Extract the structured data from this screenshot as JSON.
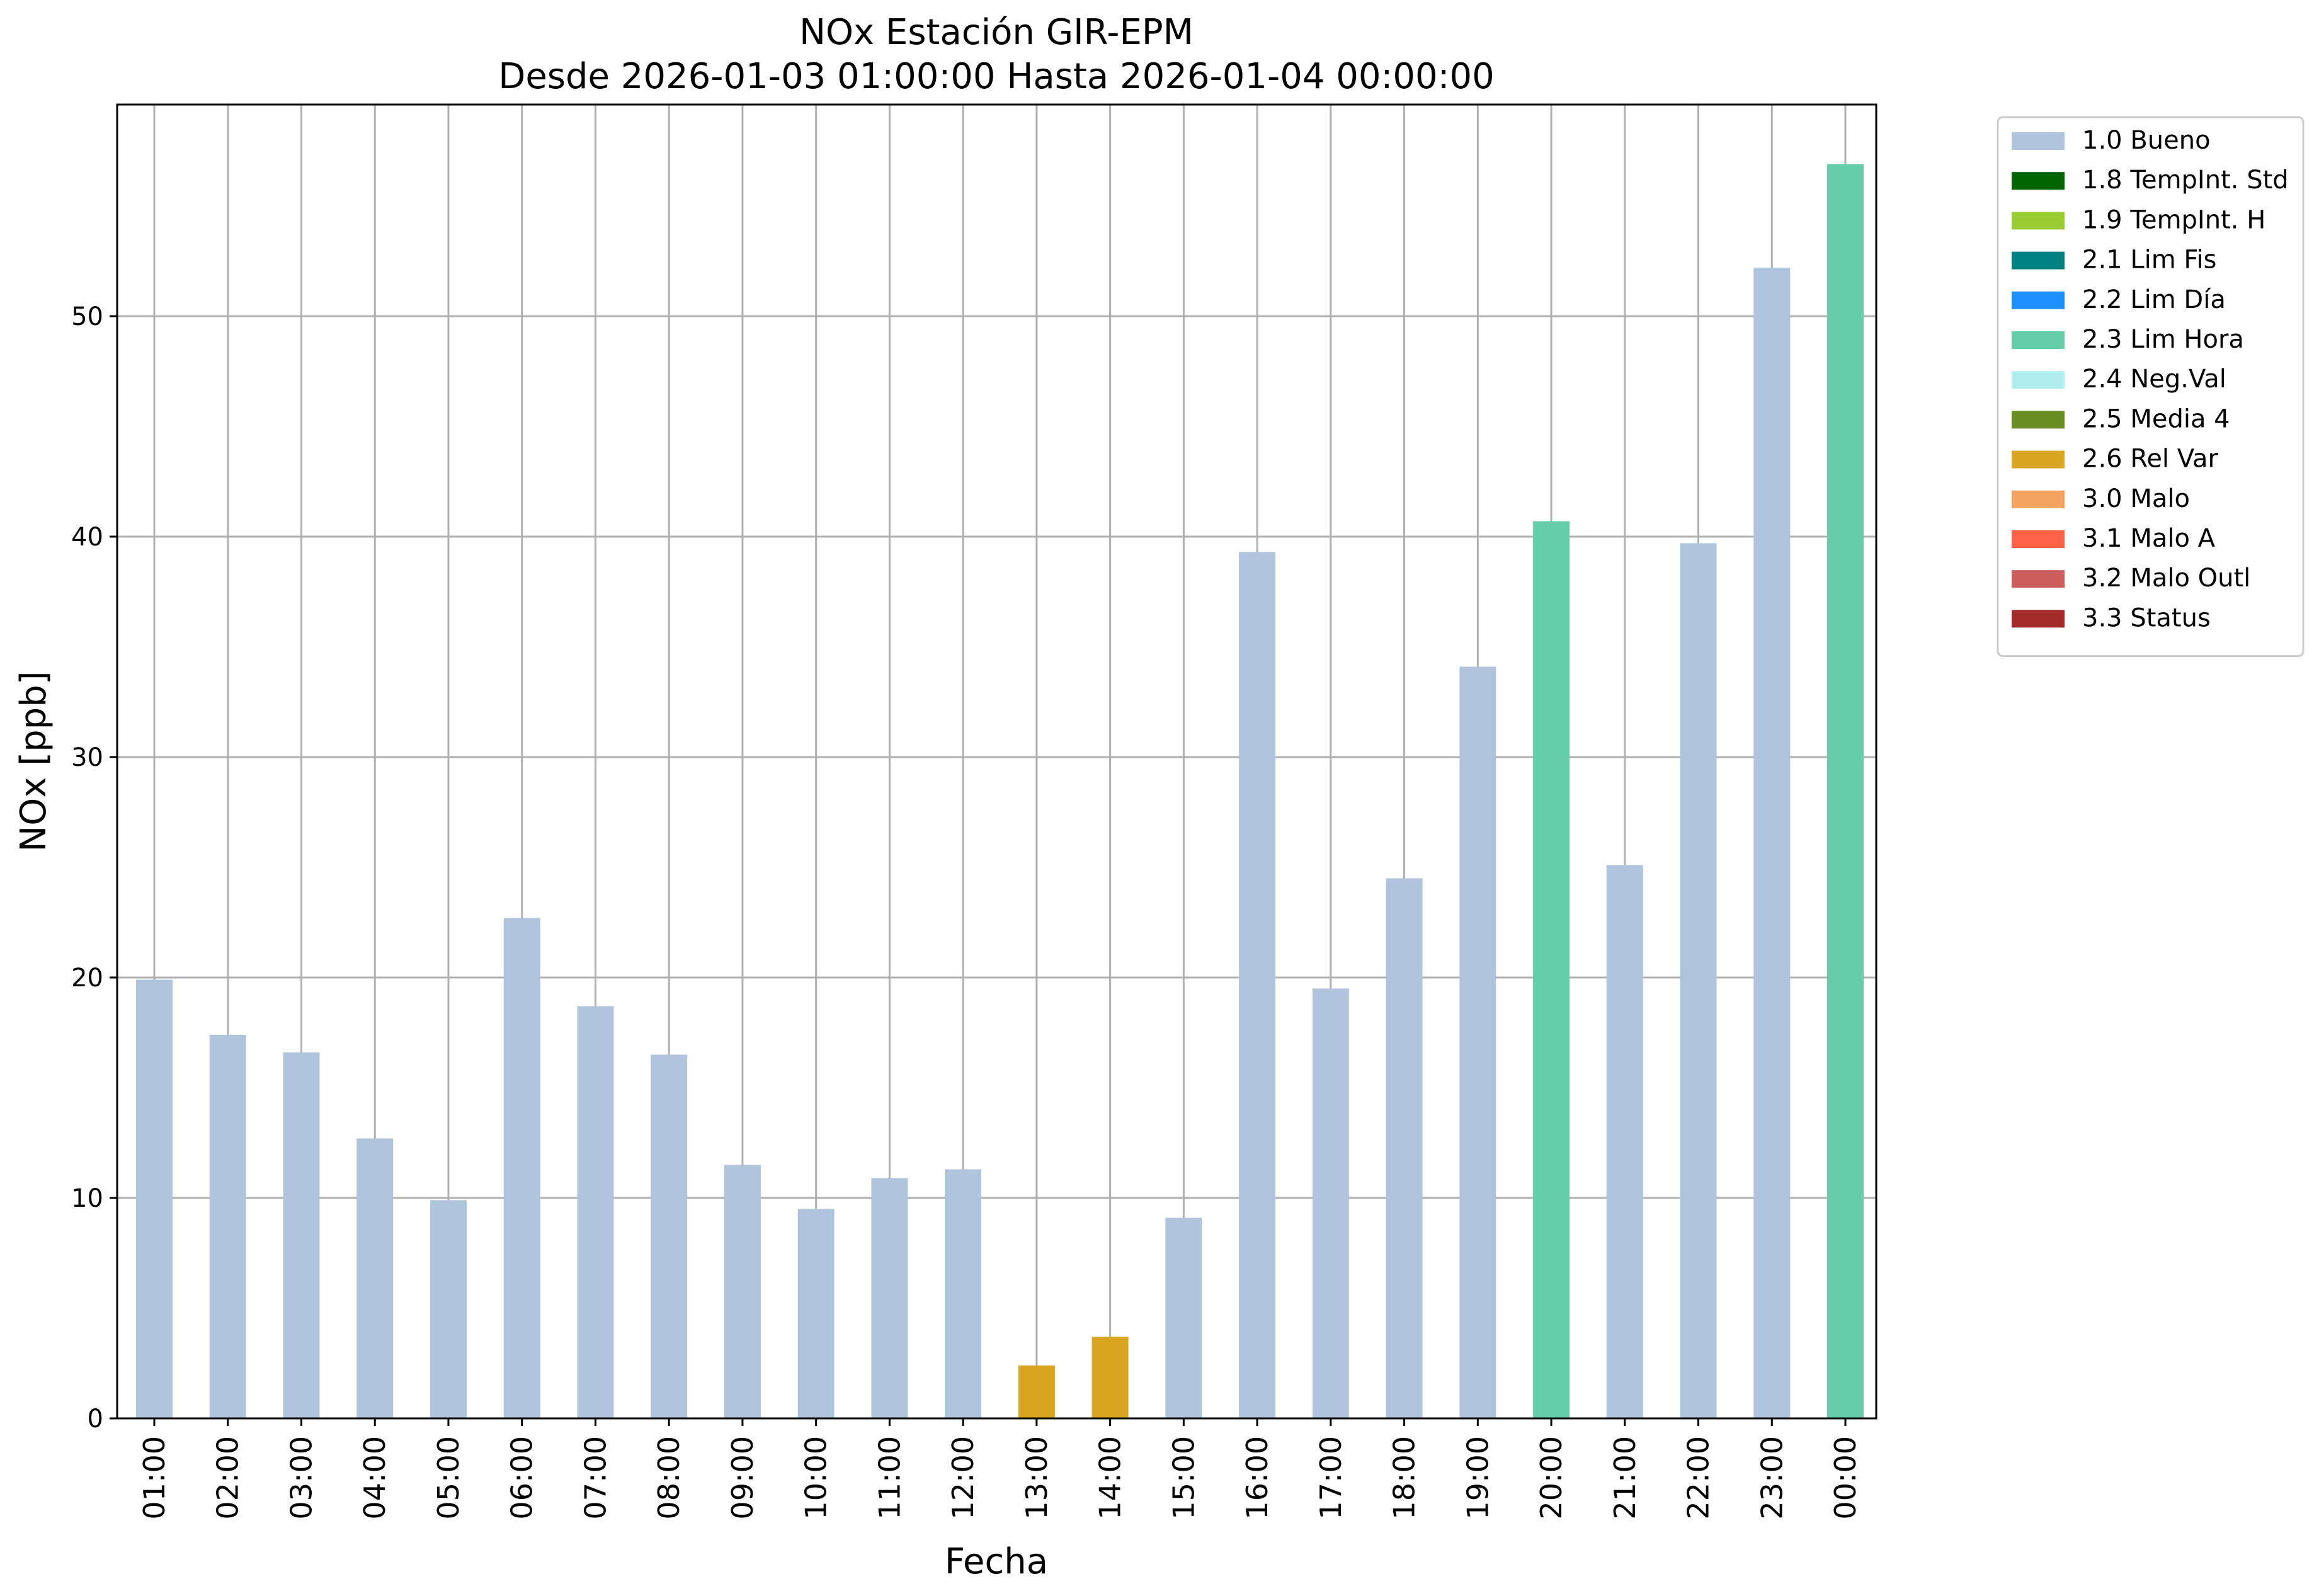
{
  "chart_data": {
    "type": "bar",
    "title": "NOx Estación GIR-EPM",
    "subtitle": "Desde 2026-01-03 01:00:00 Hasta 2026-01-04 00:00:00",
    "xlabel": "Fecha",
    "ylabel": "NOx [ppb]",
    "ylim": [
      0,
      59.6
    ],
    "yticks": [
      0,
      10,
      20,
      30,
      40,
      50
    ],
    "grid": true,
    "legend_position": "outside-top-right",
    "categories": [
      "01:00",
      "02:00",
      "03:00",
      "04:00",
      "05:00",
      "06:00",
      "07:00",
      "08:00",
      "09:00",
      "10:00",
      "11:00",
      "12:00",
      "13:00",
      "14:00",
      "15:00",
      "16:00",
      "17:00",
      "18:00",
      "19:00",
      "20:00",
      "21:00",
      "22:00",
      "23:00",
      "00:00"
    ],
    "values": [
      19.9,
      17.4,
      16.6,
      12.7,
      9.9,
      22.7,
      18.7,
      16.5,
      11.5,
      9.5,
      10.9,
      11.3,
      2.4,
      3.7,
      9.1,
      39.3,
      19.5,
      24.5,
      34.1,
      40.7,
      25.1,
      39.7,
      52.2,
      56.9
    ],
    "flags": [
      "1.0 Bueno",
      "1.0 Bueno",
      "1.0 Bueno",
      "1.0 Bueno",
      "1.0 Bueno",
      "1.0 Bueno",
      "1.0 Bueno",
      "1.0 Bueno",
      "1.0 Bueno",
      "1.0 Bueno",
      "1.0 Bueno",
      "1.0 Bueno",
      "2.6 Rel Var",
      "2.6 Rel Var",
      "1.0 Bueno",
      "1.0 Bueno",
      "1.0 Bueno",
      "1.0 Bueno",
      "1.0 Bueno",
      "2.3 Lim Hora",
      "1.0 Bueno",
      "1.0 Bueno",
      "1.0 Bueno",
      "2.3 Lim Hora"
    ],
    "legend": [
      {
        "label": "1.0 Bueno",
        "color": "#b0c4de"
      },
      {
        "label": "1.8 TempInt. Std",
        "color": "#006400"
      },
      {
        "label": "1.9 TempInt. H",
        "color": "#9acd32"
      },
      {
        "label": "2.1 Lim Fis",
        "color": "#008080"
      },
      {
        "label": "2.2 Lim Día",
        "color": "#1e90ff"
      },
      {
        "label": "2.3 Lim Hora",
        "color": "#66cdaa"
      },
      {
        "label": "2.4 Neg.Val",
        "color": "#afeeee"
      },
      {
        "label": "2.5 Media 4",
        "color": "#6b8e23"
      },
      {
        "label": "2.6 Rel Var",
        "color": "#daa520"
      },
      {
        "label": "3.0 Malo",
        "color": "#f4a460"
      },
      {
        "label": "3.1 Malo A",
        "color": "#ff6347"
      },
      {
        "label": "3.2 Malo Outl",
        "color": "#cd5c5c"
      },
      {
        "label": "3.3 Status",
        "color": "#a52a2a"
      }
    ]
  }
}
